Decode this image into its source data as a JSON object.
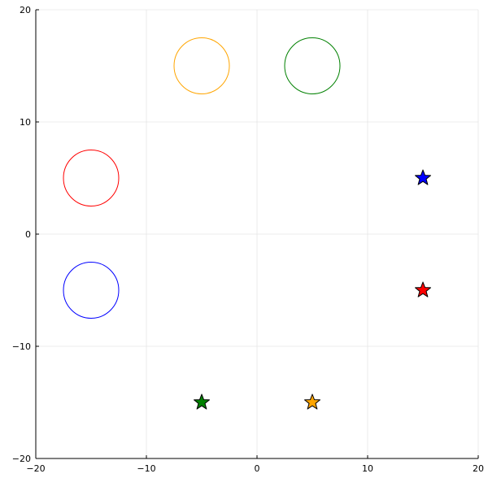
{
  "chart_data": {
    "type": "scatter",
    "title": "",
    "xlabel": "",
    "ylabel": "",
    "xlim": [
      -20,
      20
    ],
    "ylim": [
      -20,
      20
    ],
    "xticks": [
      -20,
      -10,
      0,
      10,
      20
    ],
    "yticks": [
      -20,
      -10,
      0,
      10,
      20
    ],
    "xtick_labels": [
      "−20",
      "−10",
      "0",
      "10",
      "20"
    ],
    "ytick_labels": [
      "−20",
      "−10",
      "0",
      "10",
      "20"
    ],
    "grid": true,
    "legend": "none",
    "circles": [
      {
        "x": -15,
        "y": -5,
        "r": 2.5,
        "color": "#0000ff",
        "fill": "none"
      },
      {
        "x": -15,
        "y": 5,
        "r": 2.5,
        "color": "#ff0000",
        "fill": "none"
      },
      {
        "x": -5,
        "y": 15,
        "r": 2.5,
        "color": "#ffa500",
        "fill": "none"
      },
      {
        "x": 5,
        "y": 15,
        "r": 2.5,
        "color": "#008000",
        "fill": "none"
      }
    ],
    "stars": [
      {
        "x": 15,
        "y": 5,
        "color": "#0000ff"
      },
      {
        "x": 15,
        "y": -5,
        "color": "#ff0000"
      },
      {
        "x": -5,
        "y": -15,
        "color": "#008000"
      },
      {
        "x": 5,
        "y": -15,
        "color": "#ffa500"
      }
    ],
    "colors": {
      "axis": "#000000",
      "grid": "#e6e6e6",
      "star_outline": "#000000"
    }
  }
}
